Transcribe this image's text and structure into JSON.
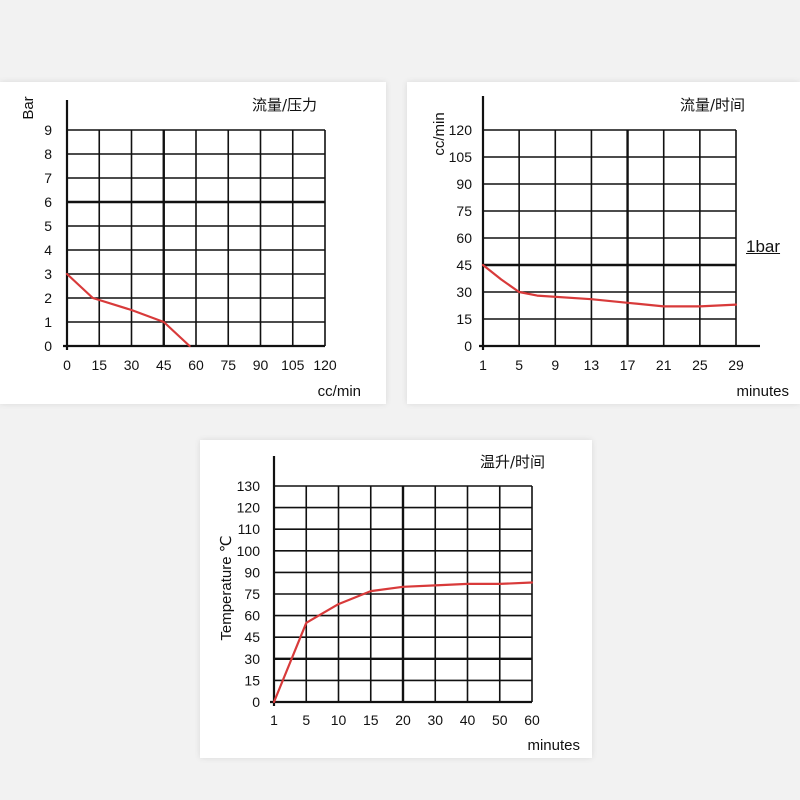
{
  "colors": {
    "line": "#d83a3a",
    "grid": "#111111",
    "background": "#f2f2f2",
    "panel": "#ffffff"
  },
  "side_note": "1bar",
  "chart_data": [
    {
      "id": "pressure",
      "type": "line",
      "title": "流量/压力",
      "xlabel": "cc/min",
      "ylabel": "Bar",
      "x_ticks": [
        "0",
        "15",
        "30",
        "45",
        "60",
        "75",
        "90",
        "105",
        "120"
      ],
      "y_ticks": [
        "0",
        "1",
        "2",
        "3",
        "4",
        "5",
        "6",
        "7",
        "8",
        "9"
      ],
      "grid": true,
      "series": [
        {
          "x": [
            0,
            6,
            12,
            30,
            45,
            57
          ],
          "y": [
            3,
            2.5,
            2,
            1.5,
            1,
            0
          ]
        }
      ]
    },
    {
      "id": "flow",
      "type": "line",
      "title": "流量/时间",
      "xlabel": "minutes",
      "ylabel": "cc/min",
      "x_ticks": [
        "1",
        "5",
        "9",
        "13",
        "17",
        "21",
        "25",
        "29"
      ],
      "y_ticks": [
        "0",
        "15",
        "30",
        "45",
        "60",
        "75",
        "90",
        "105",
        "120"
      ],
      "grid": true,
      "series": [
        {
          "x": [
            1,
            3,
            5,
            7,
            13,
            17,
            21,
            25,
            29
          ],
          "y": [
            45,
            37,
            30,
            28,
            26,
            24,
            22,
            22,
            23
          ]
        }
      ]
    },
    {
      "id": "temp",
      "type": "line",
      "title": "温升/时间",
      "xlabel": "minutes",
      "ylabel": "Temperature ℃",
      "x_ticks": [
        "1",
        "5",
        "10",
        "15",
        "20",
        "30",
        "40",
        "50",
        "60"
      ],
      "y_ticks": [
        "0",
        "15",
        "30",
        "45",
        "60",
        "75",
        "90",
        "100",
        "110",
        "120",
        "130"
      ],
      "grid": true,
      "series": [
        {
          "x": [
            "1",
            "5",
            "10",
            "15",
            "20",
            "30",
            "40",
            "50",
            "60"
          ],
          "y": [
            0,
            55,
            68,
            77,
            80,
            81,
            82,
            82,
            83
          ]
        }
      ]
    }
  ]
}
